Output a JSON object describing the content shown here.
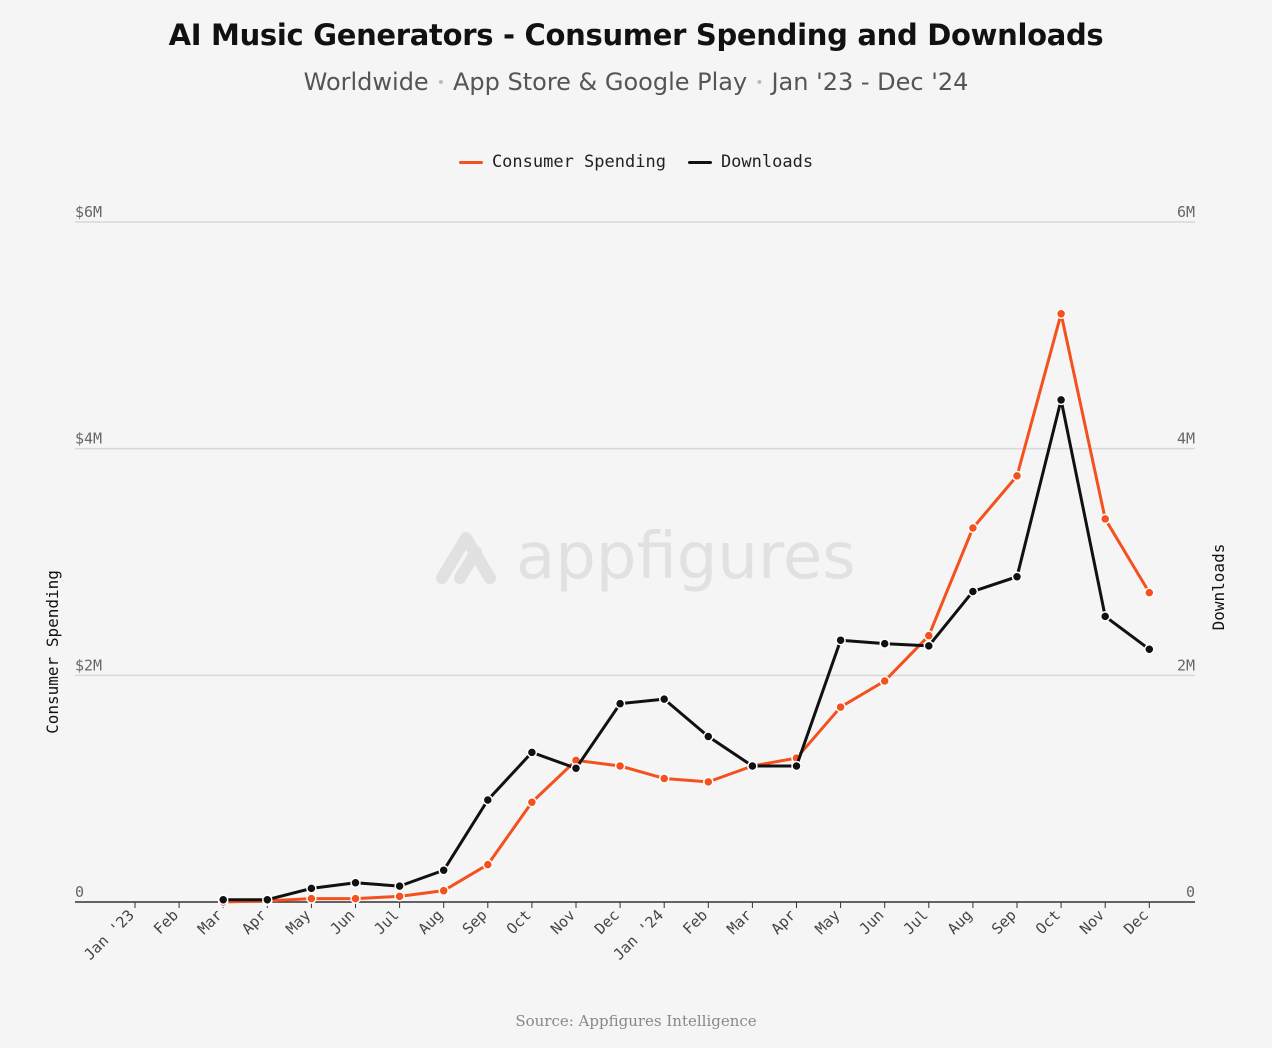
{
  "title": "AI Music Generators - Consumer Spending and Downloads",
  "subtitle": {
    "parts": [
      "Worldwide",
      "App Store & Google Play",
      "Jan '23 - Dec '24"
    ],
    "separator": "•"
  },
  "source": "Source: Appfigures Intelligence",
  "watermark": "appfigures",
  "colors": {
    "consumer_spending": "#f4511e",
    "downloads": "#111111",
    "grid": "#d8d8d8",
    "axis": "#333333"
  },
  "chart_data": {
    "type": "line",
    "categories": [
      "Jan '23",
      "Feb",
      "Mar",
      "Apr",
      "May",
      "Jun",
      "Jul",
      "Aug",
      "Sep",
      "Oct",
      "Nov",
      "Dec",
      "Jan '24",
      "Feb",
      "Mar",
      "Apr",
      "May",
      "Jun",
      "Jul",
      "Aug",
      "Sep",
      "Oct",
      "Nov",
      "Dec"
    ],
    "series": [
      {
        "name": "Consumer Spending",
        "axis": "left",
        "color": "#f4511e",
        "values": [
          null,
          null,
          0.0,
          0.01,
          0.03,
          0.03,
          0.05,
          0.1,
          0.33,
          0.88,
          1.25,
          1.2,
          1.09,
          1.06,
          1.2,
          1.27,
          1.72,
          1.95,
          2.35,
          3.3,
          3.76,
          5.19,
          3.38,
          2.73
        ]
      },
      {
        "name": "Downloads",
        "axis": "right",
        "color": "#111111",
        "values": [
          null,
          null,
          0.02,
          0.02,
          0.12,
          0.17,
          0.14,
          0.28,
          0.9,
          1.32,
          1.18,
          1.75,
          1.79,
          1.46,
          1.2,
          1.2,
          2.31,
          2.28,
          2.26,
          2.74,
          2.87,
          4.43,
          2.52,
          2.23
        ]
      }
    ],
    "y_left": {
      "label": "Consumer Spending",
      "range": [
        0,
        6
      ],
      "ticks": [
        0,
        2,
        4,
        6
      ],
      "tick_labels": [
        "0",
        "$2M",
        "$4M",
        "$6M"
      ]
    },
    "y_right": {
      "label": "Downloads",
      "range": [
        0,
        6
      ],
      "ticks": [
        0,
        2,
        4,
        6
      ],
      "tick_labels": [
        "0",
        "2M",
        "4M",
        "6M"
      ]
    },
    "legend": {
      "placement": "top-center",
      "entries": [
        "Consumer Spending",
        "Downloads"
      ]
    },
    "grid": true
  }
}
